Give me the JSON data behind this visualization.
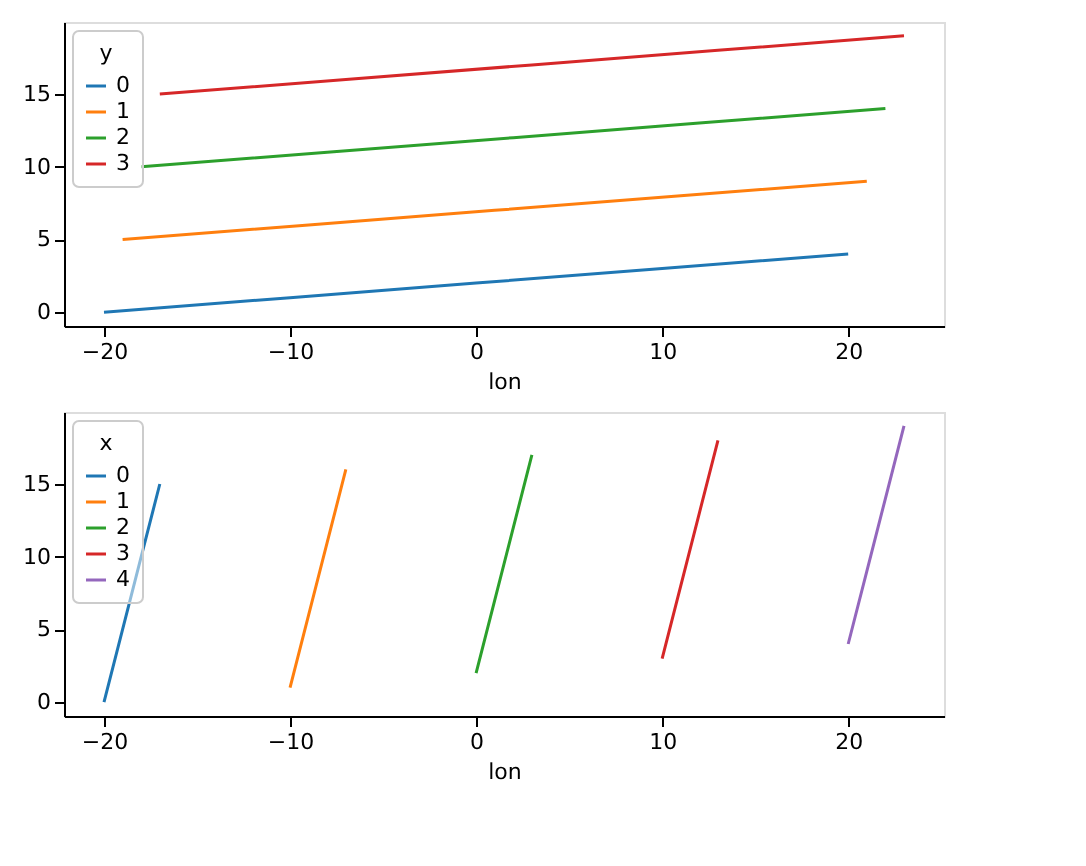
{
  "chart_data": [
    {
      "type": "line",
      "xlabel": "lon",
      "legend_title": "y",
      "legend": "top left",
      "grid": false,
      "xlim": [
        -22.15,
        25.15
      ],
      "ylim": [
        -0.95,
        19.95
      ],
      "xticks": [
        -20,
        -10,
        0,
        10,
        20
      ],
      "yticks": [
        0,
        5,
        10,
        15
      ],
      "series": [
        {
          "name": "0",
          "color": "#1f77b4",
          "x": [
            -20,
            -10,
            0,
            10,
            20
          ],
          "values": [
            0,
            1,
            2,
            3,
            4
          ]
        },
        {
          "name": "1",
          "color": "#ff7f0e",
          "x": [
            -19,
            -9,
            1,
            11,
            21
          ],
          "values": [
            5,
            6,
            7,
            8,
            9
          ]
        },
        {
          "name": "2",
          "color": "#2ca02c",
          "x": [
            -18,
            -8,
            2,
            12,
            22
          ],
          "values": [
            10,
            11,
            12,
            13,
            14
          ]
        },
        {
          "name": "3",
          "color": "#d62728",
          "x": [
            -17,
            -7,
            3,
            13,
            23
          ],
          "values": [
            15,
            16,
            17,
            18,
            19
          ]
        }
      ]
    },
    {
      "type": "line",
      "xlabel": "lon",
      "legend_title": "x",
      "legend": "top left",
      "grid": false,
      "xlim": [
        -22.15,
        25.15
      ],
      "ylim": [
        -0.95,
        19.95
      ],
      "xticks": [
        -20,
        -10,
        0,
        10,
        20
      ],
      "yticks": [
        0,
        5,
        10,
        15
      ],
      "series": [
        {
          "name": "0",
          "color": "#1f77b4",
          "x": [
            -20,
            -19,
            -18,
            -17
          ],
          "values": [
            0,
            5,
            10,
            15
          ]
        },
        {
          "name": "1",
          "color": "#ff7f0e",
          "x": [
            -10,
            -9,
            -8,
            -7
          ],
          "values": [
            1,
            6,
            11,
            16
          ]
        },
        {
          "name": "2",
          "color": "#2ca02c",
          "x": [
            0,
            1,
            2,
            3
          ],
          "values": [
            2,
            7,
            12,
            17
          ]
        },
        {
          "name": "3",
          "color": "#d62728",
          "x": [
            10,
            11,
            12,
            13
          ],
          "values": [
            3,
            8,
            13,
            18
          ]
        },
        {
          "name": "4",
          "color": "#9467bd",
          "x": [
            20,
            21,
            22,
            23
          ],
          "values": [
            4,
            9,
            14,
            19
          ]
        }
      ]
    }
  ]
}
